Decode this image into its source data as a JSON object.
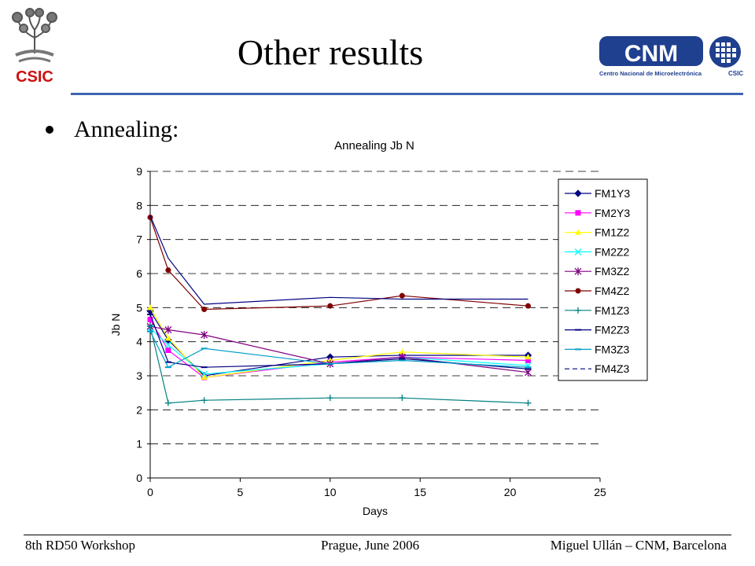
{
  "logos": {
    "csic_text": "CSIC",
    "cnm_text": "CNM",
    "cnm_subtitle": "Centro Nacional de Microelectrónica",
    "cnm_csic": "CSIC"
  },
  "slide": {
    "title": "Other results",
    "bullet": "Annealing:"
  },
  "footer": {
    "left": "8th RD50 Workshop",
    "center": "Prague, June 2006",
    "right": "Miguel Ullán – CNM, Barcelona"
  },
  "chart_data": {
    "type": "line",
    "title": "Annealing Jb N",
    "xlabel": "Days",
    "ylabel": "Jb N",
    "xlim": [
      0,
      25
    ],
    "ylim": [
      0,
      9
    ],
    "xticks": [
      0,
      5,
      10,
      15,
      20,
      25
    ],
    "yticks": [
      0,
      1,
      2,
      3,
      4,
      5,
      6,
      7,
      8,
      9
    ],
    "grid": "horizontal dashed",
    "legend": "right",
    "x": [
      0,
      1,
      3,
      10,
      14,
      21
    ],
    "series": [
      {
        "name": "FM1Y3",
        "values": [
          4.9,
          4.05,
          3.0,
          3.55,
          3.6,
          3.6
        ],
        "color": "#000080",
        "marker": "diamond"
      },
      {
        "name": "FM2Y3",
        "values": [
          4.65,
          3.75,
          2.95,
          3.4,
          3.55,
          3.45
        ],
        "color": "#ff00ff",
        "marker": "square"
      },
      {
        "name": "FM1Z2",
        "values": [
          5.0,
          4.1,
          2.95,
          3.45,
          3.7,
          3.55
        ],
        "color": "#ffff00",
        "marker": "triangle"
      },
      {
        "name": "FM2Z2",
        "values": [
          4.4,
          3.9,
          3.05,
          3.35,
          3.55,
          3.3
        ],
        "color": "#00ffff",
        "marker": "x"
      },
      {
        "name": "FM3Z2",
        "values": [
          4.45,
          4.35,
          4.2,
          3.35,
          3.55,
          3.1
        ],
        "color": "#800080",
        "marker": "star"
      },
      {
        "name": "FM4Z2",
        "values": [
          7.65,
          6.1,
          4.95,
          5.05,
          5.35,
          5.05
        ],
        "color": "#800000",
        "marker": "circle"
      },
      {
        "name": "FM1Z3",
        "values": [
          4.45,
          2.2,
          2.28,
          2.35,
          2.35,
          2.2
        ],
        "color": "#008080",
        "marker": "plus"
      },
      {
        "name": "FM2Z3",
        "values": [
          4.8,
          3.4,
          3.25,
          3.35,
          3.5,
          3.2
        ],
        "color": "#000080",
        "marker": "dash"
      },
      {
        "name": "FM3Z3",
        "values": [
          4.3,
          3.25,
          3.8,
          3.35,
          3.45,
          3.25
        ],
        "color": "#00a0c8",
        "marker": "dash"
      },
      {
        "name": "FM4Z3",
        "values": [
          7.7,
          6.45,
          5.1,
          5.3,
          5.25,
          5.25
        ],
        "color": "#000080",
        "marker": "none"
      }
    ]
  }
}
